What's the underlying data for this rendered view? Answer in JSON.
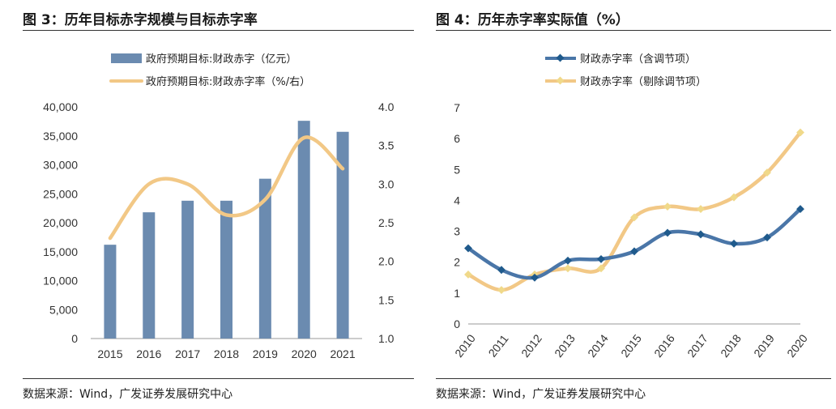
{
  "left": {
    "title": "图 3：历年目标赤字规模与目标赤字率",
    "source": "数据来源：Wind，广发证券发展研究中心",
    "legend": {
      "bar": "政府预期目标:财政赤字（亿元）",
      "line": "政府预期目标:财政赤字率（%/右）"
    }
  },
  "right": {
    "title": "图 4：历年赤字率实际值（%）",
    "source": "数据来源：Wind，广发证券发展研究中心",
    "legend": {
      "s1": "财政赤字率（含调节项）",
      "s2": "财政赤字率（剔除调节项）"
    }
  },
  "colors": {
    "bar": "#6b8bb0",
    "line_orange": "#f2c886",
    "line_blue": "#4a76a8"
  },
  "chart_data": [
    {
      "type": "bar",
      "categories": [
        "2015",
        "2016",
        "2017",
        "2018",
        "2019",
        "2020",
        "2021"
      ],
      "series": [
        {
          "name": "政府预期目标:财政赤字（亿元）",
          "axis": "left",
          "values": [
            16200,
            21800,
            23800,
            23800,
            27600,
            37600,
            35700
          ]
        },
        {
          "name": "政府预期目标:财政赤字率（%/右）",
          "axis": "right",
          "type": "line",
          "values": [
            2.3,
            3.0,
            3.0,
            2.6,
            2.8,
            3.6,
            3.2
          ]
        }
      ],
      "ylim": [
        0,
        40000
      ],
      "y2lim": [
        1.0,
        4.0
      ],
      "yticks": [
        "0",
        "5,000",
        "10,000",
        "15,000",
        "20,000",
        "25,000",
        "30,000",
        "35,000",
        "40,000"
      ],
      "y2ticks": [
        "1.0",
        "1.5",
        "2.0",
        "2.5",
        "3.0",
        "3.5",
        "4.0"
      ],
      "legend": "top-center",
      "grid": false
    },
    {
      "type": "line",
      "categories": [
        "2010",
        "2011",
        "2012",
        "2013",
        "2014",
        "2015",
        "2016",
        "2017",
        "2018",
        "2019",
        "2020"
      ],
      "series": [
        {
          "name": "财政赤字率（含调节项）",
          "values": [
            2.45,
            1.75,
            1.5,
            2.05,
            2.1,
            2.35,
            2.95,
            2.9,
            2.6,
            2.8,
            3.72
          ]
        },
        {
          "name": "财政赤字率（剔除调节项）",
          "values": [
            1.6,
            1.1,
            1.6,
            1.8,
            1.8,
            3.45,
            3.8,
            3.72,
            4.1,
            4.9,
            6.2
          ]
        }
      ],
      "ylim": [
        0,
        7
      ],
      "yticks": [
        "0",
        "1",
        "2",
        "3",
        "4",
        "5",
        "6",
        "7"
      ],
      "legend": "top-center",
      "grid": false
    }
  ]
}
